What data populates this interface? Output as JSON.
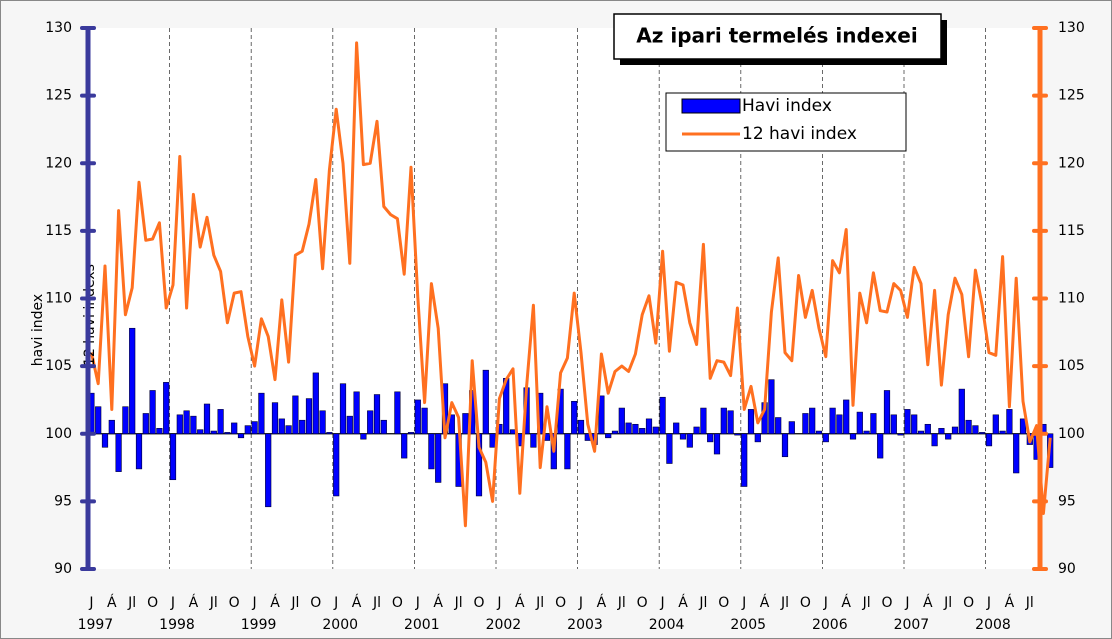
{
  "chart_data": {
    "type": "bar-line",
    "title": "Az ipari termelés indexei",
    "ylabel": "havi index",
    "y2label": "12 havi indexs",
    "categories": [
      "J",
      null,
      null,
      "Á",
      null,
      null,
      "Jl",
      null,
      null,
      "O",
      null,
      null,
      "J",
      null,
      null,
      "Á",
      null,
      null,
      "Jl",
      null,
      null,
      "O",
      null,
      null,
      "J",
      null,
      null,
      "Á",
      null,
      null,
      "Jl",
      null,
      null,
      "O",
      null,
      null,
      "J",
      null,
      null,
      "Á",
      null,
      null,
      "Jl",
      null,
      null,
      "O",
      null,
      null,
      "J",
      null,
      null,
      "Á",
      null,
      null,
      "Jl",
      null,
      null,
      "O",
      null,
      null,
      "J",
      null,
      null,
      "Á",
      null,
      null,
      "Jl",
      null,
      null,
      "O",
      null,
      null,
      "J",
      null,
      null,
      "Á",
      null,
      null,
      "Jl",
      null,
      null,
      "O",
      null,
      null,
      "J",
      null,
      null,
      "Á",
      null,
      null,
      "Jl",
      null,
      null,
      "O",
      null,
      null,
      "J",
      null,
      null,
      "Á",
      null,
      null,
      "Jl",
      null,
      null,
      "O",
      null,
      null,
      "J",
      null,
      null,
      "Á",
      null,
      null,
      "Jl",
      null,
      null,
      "O",
      null,
      null,
      "J",
      null,
      null,
      "Á",
      null,
      null,
      "Jl",
      null,
      null,
      "O",
      null,
      null,
      "J",
      null,
      null,
      "Á",
      null,
      null,
      "Jl",
      null,
      null,
      null
    ],
    "year_labels": [
      "1997",
      "1998",
      "1999",
      "2000",
      "2001",
      "2002",
      "2003",
      "2004",
      "2005",
      "2006",
      "2007",
      "2008"
    ],
    "baseline": 100,
    "series": [
      {
        "name": "Havi index",
        "kind": "bar",
        "axis": "y",
        "color": "#0000ff",
        "values": [
          103,
          102,
          99,
          101,
          97.2,
          102,
          107.8,
          97.4,
          101.5,
          103.2,
          100.4,
          103.8,
          96.6,
          101.4,
          101.7,
          101.3,
          100.3,
          102.2,
          100.2,
          101.8,
          100.1,
          100.8,
          99.7,
          100.6,
          100.9,
          103,
          94.6,
          102.3,
          101.1,
          100.6,
          102.8,
          101,
          102.6,
          104.5,
          101.7,
          100.1,
          95.4,
          103.7,
          101.3,
          103.1,
          99.6,
          101.7,
          102.9,
          101,
          100,
          103.1,
          98.2,
          100.1,
          102.5,
          101.9,
          97.4,
          96.4,
          103.7,
          101.4,
          96.1,
          101.5,
          103.2,
          95.4,
          104.7,
          99,
          100.7,
          104.1,
          100.3,
          99.1,
          103.4,
          99,
          103,
          99.5,
          97.4,
          103.3,
          97.4,
          102.4,
          101,
          99.5,
          99.2,
          102.8,
          99.7,
          100.2,
          101.9,
          100.8,
          100.7,
          100.4,
          101.1,
          100.5,
          102.7,
          97.8,
          100.8,
          99.6,
          99,
          100.5,
          101.9,
          99.4,
          98.5,
          101.9,
          101.7,
          99.9,
          96.1,
          101.8,
          99.4,
          102.3,
          104,
          101.2,
          98.3,
          100.9,
          100,
          101.5,
          101.9,
          100.2,
          99.4,
          101.9,
          101.4,
          102.5,
          99.6,
          101.6,
          100.2,
          101.5,
          98.2,
          103.2,
          101.4,
          99.9,
          101.8,
          101.4,
          100.2,
          100.7,
          99.1,
          100.4,
          99.6,
          100.5,
          103.3,
          101,
          100.6,
          100.1,
          99.1,
          101.4,
          100.2,
          101.8,
          97.1,
          101.1,
          99.2,
          98.1,
          100.7,
          97.5
        ]
      },
      {
        "name": "12 havi index",
        "kind": "line",
        "axis": "y2",
        "color": "#ff7020",
        "values": [
          106,
          103.7,
          112.4,
          101.8,
          116.5,
          108.8,
          110.8,
          118.6,
          114.3,
          114.4,
          115.6,
          109.3,
          111,
          120.5,
          109.3,
          117.7,
          113.8,
          116,
          113.2,
          112,
          108.2,
          110.4,
          110.5,
          107.2,
          105,
          108.5,
          107.2,
          104,
          109.9,
          105.3,
          113.2,
          113.5,
          115.5,
          118.8,
          112.2,
          119.5,
          124,
          120,
          112.6,
          128.9,
          119.9,
          120,
          123.1,
          116.8,
          116.2,
          115.9,
          111.8,
          119.7,
          110.1,
          102.3,
          111.1,
          107.8,
          99.7,
          102.3,
          101.2,
          93.2,
          105.4,
          99,
          97.9,
          95,
          102.6,
          104,
          104.8,
          95.6,
          103.5,
          109.5,
          97.5,
          102,
          98.7,
          104.5,
          105.6,
          110.4,
          106,
          100.7,
          98.7,
          105.9,
          103,
          104.6,
          105,
          104.6,
          105.9,
          108.8,
          110.2,
          106.7,
          113.5,
          106.1,
          111.2,
          111,
          108.2,
          106.6,
          114,
          104.1,
          105.4,
          105.3,
          104.3,
          109.3,
          101.8,
          103.5,
          100.8,
          101.8,
          109,
          113,
          106,
          105.4,
          111.7,
          108.6,
          110.6,
          107.8,
          105.7,
          112.8,
          111.9,
          115.1,
          102.1,
          110.4,
          108.2,
          111.9,
          109.1,
          109,
          111.1,
          110.6,
          108.6,
          112.3,
          111.1,
          105.1,
          110.6,
          103.6,
          108.8,
          111.5,
          110.3,
          105.7,
          112.1,
          109.5,
          106,
          105.8,
          113.1,
          102,
          111.5,
          102.4,
          99.4,
          100.6,
          94.1,
          99.7
        ]
      }
    ],
    "ylim": [
      90,
      130
    ],
    "yticks": [
      90,
      95,
      100,
      105,
      110,
      115,
      120,
      125,
      130
    ],
    "y2lim": [
      90,
      130
    ],
    "y2ticks": [
      90,
      95,
      100,
      105,
      110,
      115,
      120,
      125,
      130
    ],
    "left_axis_color": "#3a3a9c",
    "right_axis_color": "#ff7020"
  }
}
